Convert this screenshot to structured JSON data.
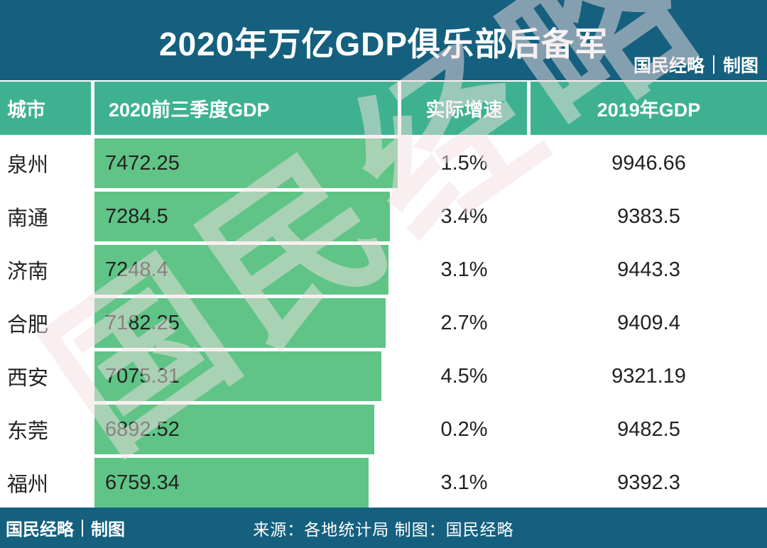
{
  "header": {
    "title": "2020年万亿GDP俱乐部后备军",
    "brand_name": "国民经略",
    "brand_suffix": "制图"
  },
  "table": {
    "columns": [
      {
        "key": "city",
        "label": "城市"
      },
      {
        "key": "gdp2020",
        "label": "2020前三季度GDP"
      },
      {
        "key": "growth",
        "label": "实际增速"
      },
      {
        "key": "gdp2019",
        "label": "2019年GDP"
      }
    ],
    "bar_max": 7472.25,
    "rows": [
      {
        "city": "泉州",
        "gdp2020": "7472.25",
        "growth": "1.5%",
        "gdp2019": "9946.66",
        "bar_value": 7472.25
      },
      {
        "city": "南通",
        "gdp2020": "7284.5",
        "growth": "3.4%",
        "gdp2019": "9383.5",
        "bar_value": 7284.5
      },
      {
        "city": "济南",
        "gdp2020": "7248.4",
        "growth": "3.1%",
        "gdp2019": "9443.3",
        "bar_value": 7248.4
      },
      {
        "city": "合肥",
        "gdp2020": "7182.25",
        "growth": "2.7%",
        "gdp2019": "9409.4",
        "bar_value": 7182.25
      },
      {
        "city": "西安",
        "gdp2020": "7075.31",
        "growth": "4.5%",
        "gdp2019": "9321.19",
        "bar_value": 7075.31
      },
      {
        "city": "东莞",
        "gdp2020": "6892.52",
        "growth": "0.2%",
        "gdp2019": "9482.5",
        "bar_value": 6892.52
      },
      {
        "city": "福州",
        "gdp2020": "6759.34",
        "growth": "3.1%",
        "gdp2019": "9392.3",
        "bar_value": 6759.34
      }
    ]
  },
  "watermark_text": "国民经略",
  "footer": {
    "brand_name": "国民经略",
    "brand_suffix": "制图",
    "source_text": "来源：各地统计局 制图：国民经略"
  },
  "colors": {
    "dark_teal": "#15607e",
    "header_green": "#3eb290",
    "bar_green": "#5fc486",
    "row_odd": "#c3e0d4",
    "row_even": "#d9ece4",
    "title_text": "#ffffff",
    "body_text": "#222222"
  },
  "chart_data": {
    "type": "bar",
    "title": "2020年万亿GDP俱乐部后备军",
    "orientation": "horizontal",
    "categories": [
      "泉州",
      "南通",
      "济南",
      "合肥",
      "西安",
      "东莞",
      "福州"
    ],
    "series": [
      {
        "name": "2020前三季度GDP",
        "values": [
          7472.25,
          7284.5,
          7248.4,
          7182.25,
          7075.31,
          6892.52,
          6759.34
        ]
      },
      {
        "name": "实际增速(%)",
        "values": [
          1.5,
          3.4,
          3.1,
          2.7,
          4.5,
          0.2,
          3.1
        ]
      },
      {
        "name": "2019年GDP",
        "values": [
          9946.66,
          9383.5,
          9443.3,
          9409.4,
          9321.19,
          9482.5,
          9392.3
        ]
      }
    ],
    "bar_series": "2020前三季度GDP",
    "bar_axis_range": [
      0,
      7472.25
    ],
    "grid": false,
    "legend_position": "none",
    "source_note": "来源：各地统计局 制图：国民经略"
  }
}
